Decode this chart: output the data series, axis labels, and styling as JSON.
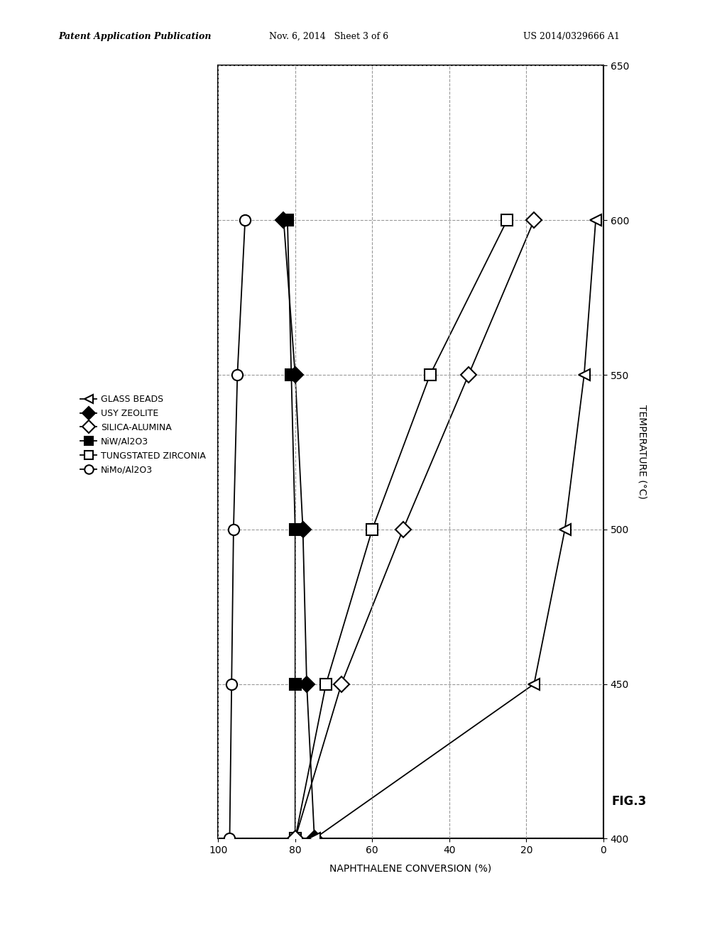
{
  "header_left": "Patent Application Publication",
  "header_mid": "Nov. 6, 2014   Sheet 3 of 6",
  "header_right": "US 2014/0329666 A1",
  "fig_label": "FIG.3",
  "xlabel": "NAPHTHALENE CONVERSION (%)",
  "ylabel": "TEMPERATURE (°C)",
  "xlim_left": 100,
  "xlim_right": 0,
  "ylim_bottom": 400,
  "ylim_top": 650,
  "xticks": [
    100,
    80,
    60,
    40,
    20,
    0
  ],
  "yticks": [
    400,
    450,
    500,
    550,
    600,
    650
  ],
  "nimo_x": [
    97,
    96.5,
    96,
    95,
    93
  ],
  "nimo_y": [
    400,
    450,
    500,
    550,
    600
  ],
  "niw_x": [
    80,
    80,
    80,
    81,
    82
  ],
  "niw_y": [
    400,
    450,
    500,
    550,
    600
  ],
  "usy_x": [
    75,
    77,
    78,
    80,
    83
  ],
  "usy_y": [
    400,
    450,
    500,
    550,
    600
  ],
  "tungst_x": [
    80,
    72,
    60,
    45,
    25
  ],
  "tungst_y": [
    400,
    450,
    500,
    550,
    600
  ],
  "silica_x": [
    80,
    68,
    52,
    35,
    18
  ],
  "silica_y": [
    400,
    450,
    500,
    550,
    600
  ],
  "glass_x": [
    75,
    18,
    10,
    5,
    2
  ],
  "glass_y": [
    400,
    450,
    500,
    550,
    600
  ],
  "background_color": "#ffffff",
  "grid_color": "#999999",
  "grid_linestyle": "--",
  "line_color": "#000000",
  "marker_color": "#000000",
  "marker_size": 11,
  "line_width": 1.3
}
